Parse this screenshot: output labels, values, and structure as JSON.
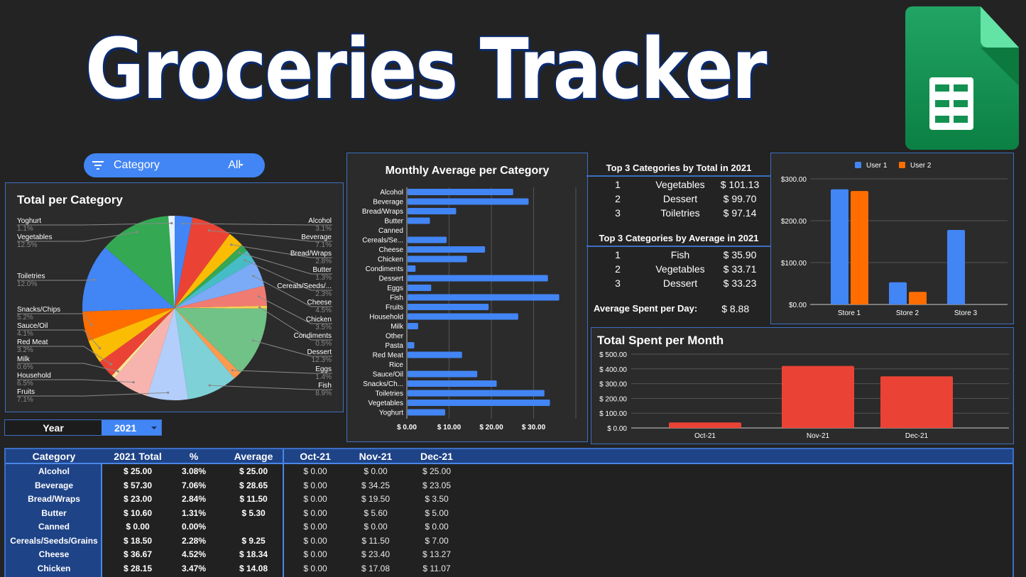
{
  "header": {
    "title": "Groceries Tracker",
    "logo": "google-sheets-logo"
  },
  "filter": {
    "icon": "filter-icon",
    "label": "Category",
    "value": "All"
  },
  "year_selector": {
    "label": "Year",
    "value": "2021"
  },
  "top3": {
    "total_heading": "Top 3 Categories by Total in 2021",
    "total_rows": [
      {
        "rank": "1",
        "category": "Vegetables",
        "amount": "$ 101.13"
      },
      {
        "rank": "2",
        "category": "Dessert",
        "amount": "$ 99.70"
      },
      {
        "rank": "3",
        "category": "Toiletries",
        "amount": "$ 97.14"
      }
    ],
    "average_heading": "Top 3 Categories by Average in 2021",
    "average_rows": [
      {
        "rank": "1",
        "category": "Fish",
        "amount": "$ 35.90"
      },
      {
        "rank": "2",
        "category": "Vegetables",
        "amount": "$ 33.71"
      },
      {
        "rank": "3",
        "category": "Dessert",
        "amount": "$ 33.23"
      }
    ],
    "avg_per_day_label": "Average Spent per Day:",
    "avg_per_day_value": "$ 8.88"
  },
  "table": {
    "headers": [
      "Category",
      "2021 Total",
      "%",
      "Average",
      "Oct-21",
      "Nov-21",
      "Dec-21"
    ],
    "rows": [
      [
        "Alcohol",
        "$ 25.00",
        "3.08%",
        "$ 25.00",
        "$ 0.00",
        "$ 0.00",
        "$ 25.00"
      ],
      [
        "Beverage",
        "$ 57.30",
        "7.06%",
        "$ 28.65",
        "$ 0.00",
        "$ 34.25",
        "$ 23.05"
      ],
      [
        "Bread/Wraps",
        "$ 23.00",
        "2.84%",
        "$ 11.50",
        "$ 0.00",
        "$ 19.50",
        "$ 3.50"
      ],
      [
        "Butter",
        "$ 10.60",
        "1.31%",
        "$ 5.30",
        "$ 0.00",
        "$ 5.60",
        "$ 5.00"
      ],
      [
        "Canned",
        "$ 0.00",
        "0.00%",
        "",
        "$ 0.00",
        "$ 0.00",
        "$ 0.00"
      ],
      [
        "Cereals/Seeds/Grains",
        "$ 18.50",
        "2.28%",
        "$ 9.25",
        "$ 0.00",
        "$ 11.50",
        "$ 7.00"
      ],
      [
        "Cheese",
        "$ 36.67",
        "4.52%",
        "$ 18.34",
        "$ 0.00",
        "$ 23.40",
        "$ 13.27"
      ],
      [
        "Chicken",
        "$ 28.15",
        "3.47%",
        "$ 14.08",
        "$ 0.00",
        "$ 17.08",
        "$ 11.07"
      ]
    ]
  },
  "colors": {
    "background": "#232323",
    "panel": "#2b2b2b",
    "accent_blue": "#4285f4",
    "border_blue": "#3d6fc4",
    "table_header": "#1e4387",
    "bar_blue": "#4285f4",
    "bar_orange": "#ff6d01",
    "bar_red": "#ea4335"
  },
  "chart_data": [
    {
      "type": "pie",
      "title": "Total per Category",
      "categories": [
        "Alcohol",
        "Beverage",
        "Bread/Wraps",
        "Butter",
        "Cereals/Seeds/...",
        "Cheese",
        "Chicken",
        "Condiments",
        "Dessert",
        "Eggs",
        "Fish",
        "Fruits",
        "Household",
        "Milk",
        "Red Meat",
        "Sauce/Oil",
        "Snacks/Chips",
        "Toiletries",
        "Vegetables",
        "Yoghurt"
      ],
      "values": [
        3.1,
        7.1,
        2.8,
        1.3,
        2.3,
        4.5,
        3.5,
        0.5,
        12.3,
        1.4,
        8.9,
        7.1,
        6.5,
        0.6,
        3.2,
        4.1,
        5.2,
        12.0,
        12.5,
        1.1
      ],
      "labels": [
        "3.1%",
        "7.1%",
        "2.8%",
        "1.3%",
        "2.3%",
        "4.5%",
        "3.5%",
        "0.5%",
        "12.3%",
        "1.4%",
        "8.9%",
        "7.1%",
        "6.5%",
        "0.6%",
        "3.2%",
        "4.1%",
        "5.2%",
        "12.0%",
        "12.5%",
        "1.1%"
      ],
      "colors": [
        "#4285f4",
        "#ea4335",
        "#fbbc04",
        "#34a853",
        "#46bdc6",
        "#7baaf7",
        "#f07b72",
        "#fcd04f",
        "#71c287",
        "#ff994d",
        "#7ed1d7",
        "#b3cefb",
        "#f7b4ae",
        "#fde49b",
        "#ea4335",
        "#fbbc04",
        "#ff6d01",
        "#4285f4",
        "#34a853",
        "#e8f0fe"
      ]
    },
    {
      "type": "bar",
      "orientation": "horizontal",
      "title": "Monthly Average per Category",
      "categories": [
        "Alcohol",
        "Beverage",
        "Bread/Wraps",
        "Butter",
        "Canned",
        "Cereals/Se...",
        "Cheese",
        "Chicken",
        "Condiments",
        "Dessert",
        "Eggs",
        "Fish",
        "Fruits",
        "Household",
        "Milk",
        "Other",
        "Pasta",
        "Red Meat",
        "Rice",
        "Sauce/Oil",
        "Snacks/Ch...",
        "Toiletries",
        "Vegetables",
        "Yoghurt"
      ],
      "values": [
        25.0,
        28.65,
        11.5,
        5.3,
        0,
        9.25,
        18.34,
        14.08,
        1.9,
        33.23,
        5.6,
        35.9,
        19.2,
        26.2,
        2.5,
        0,
        1.6,
        12.9,
        0,
        16.5,
        21.1,
        32.4,
        33.71,
        8.9
      ],
      "xticks": [
        "$ 0.00",
        "$ 10.00",
        "$ 20.00",
        "$ 30.00"
      ],
      "xlim": [
        0,
        40
      ],
      "grid": true
    },
    {
      "type": "bar",
      "title": "",
      "categories": [
        "Store 1",
        "Store 2",
        "Store 3"
      ],
      "series": [
        {
          "name": "User 1",
          "values": [
            275,
            53,
            178
          ]
        },
        {
          "name": "User 2",
          "values": [
            271,
            30,
            0
          ]
        }
      ],
      "yticks": [
        "$0.00",
        "$100.00",
        "$200.00",
        "$300.00"
      ],
      "ylim": [
        0,
        300
      ],
      "legend_position": "top",
      "grid": true
    },
    {
      "type": "bar",
      "title": "Total Spent per Month",
      "categories": [
        "Oct-21",
        "Nov-21",
        "Dec-21"
      ],
      "values": [
        37,
        420,
        350
      ],
      "yticks": [
        "$ 0.00",
        "$ 100.00",
        "$ 200.00",
        "$ 300.00",
        "$ 400.00",
        "$ 500.00"
      ],
      "ylim": [
        0,
        500
      ],
      "grid": true
    }
  ]
}
